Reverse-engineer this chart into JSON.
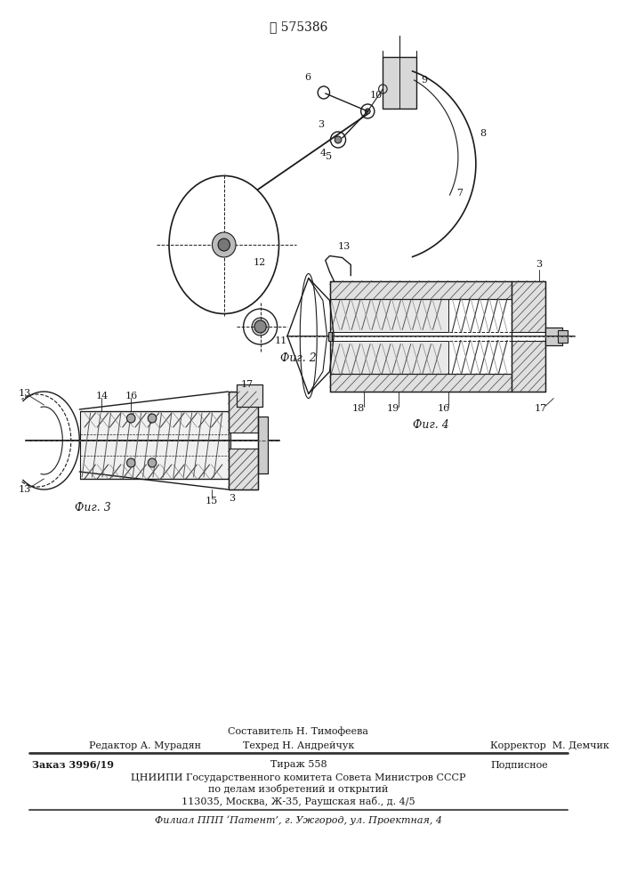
{
  "patent_number": "575386",
  "bg_color": "#ffffff",
  "line_color": "#1a1a1a",
  "fig2_caption": "Фиг. 2",
  "fig3_caption": "Фиг. 3",
  "fig4_caption": "Фиг. 4",
  "footer_line1": "Составитель Н. Тимофеева",
  "footer_line2_left": "Редактор А. Мурадян",
  "footer_line2_mid": "Техред Н. Андрейчук",
  "footer_line2_right": "Корректор  М. Демчик",
  "footer_line3_left": "Заказ 3996/19",
  "footer_line3_mid": "Тираж 558",
  "footer_line3_right": "Подписное",
  "footer_line4": "ЦНИИПИ Государственного комитета Совета Министров СССР",
  "footer_line5": "по делам изобретений и открытий",
  "footer_line6": "113035, Москва, Ж-35, Раушская наб., д. 4/5",
  "footer_line7": "Филиал ППП ‘Патент’, г. Ужгород, ул. Проектная, 4"
}
